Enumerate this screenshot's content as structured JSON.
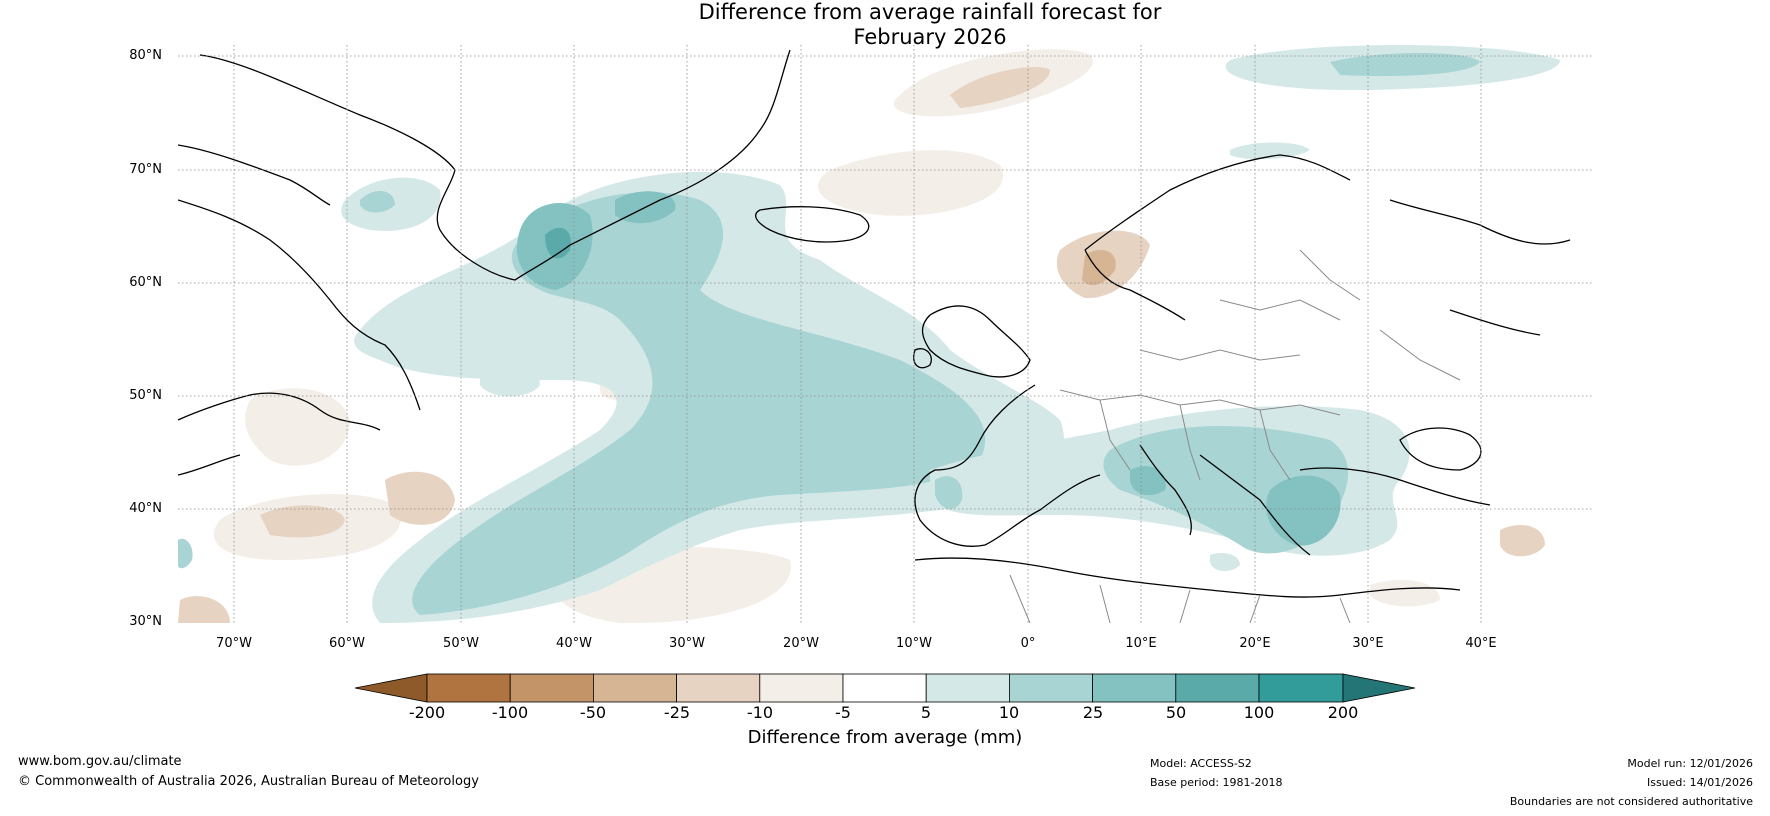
{
  "title": {
    "line1": "Difference from average rainfall forecast for",
    "line2": "February 2026"
  },
  "map": {
    "region": "North Atlantic and Europe",
    "latitude_labels": [
      "80°N",
      "70°N",
      "60°N",
      "50°N",
      "40°N",
      "30°N"
    ],
    "longitude_labels": [
      "70°W",
      "60°W",
      "50°W",
      "40°W",
      "30°W",
      "20°W",
      "10°W",
      "0°",
      "10°E",
      "20°E",
      "30°E",
      "40°E"
    ],
    "colors": {
      "land_outline": "#000000",
      "borders": "#8a8a8a",
      "graticule": "#888888"
    }
  },
  "colorbar": {
    "tick_labels": [
      "-200",
      "-100",
      "-50",
      "-25",
      "-10",
      "-5",
      "5",
      "10",
      "25",
      "50",
      "100",
      "200"
    ],
    "colors": [
      "#8e5a2a",
      "#af7440",
      "#c39467",
      "#d6b595",
      "#e6d3c2",
      "#f3eee8",
      "#ffffff",
      "#d5e8e8",
      "#a9d4d4",
      "#83c2c1",
      "#5aaaaa",
      "#329c9b",
      "#247575"
    ],
    "label": "Difference from average (mm)"
  },
  "footer": {
    "website": "www.bom.gov.au/climate",
    "copyright": "© Commonwealth of Australia 2026, Australian Bureau of Meteorology",
    "model": "Model: ACCESS-S2",
    "base_period": "Base period: 1981-2018",
    "model_run": "Model run: 12/01/2026",
    "issued": "Issued: 14/01/2026",
    "disclaimer": "Boundaries are not considered authoritative"
  }
}
